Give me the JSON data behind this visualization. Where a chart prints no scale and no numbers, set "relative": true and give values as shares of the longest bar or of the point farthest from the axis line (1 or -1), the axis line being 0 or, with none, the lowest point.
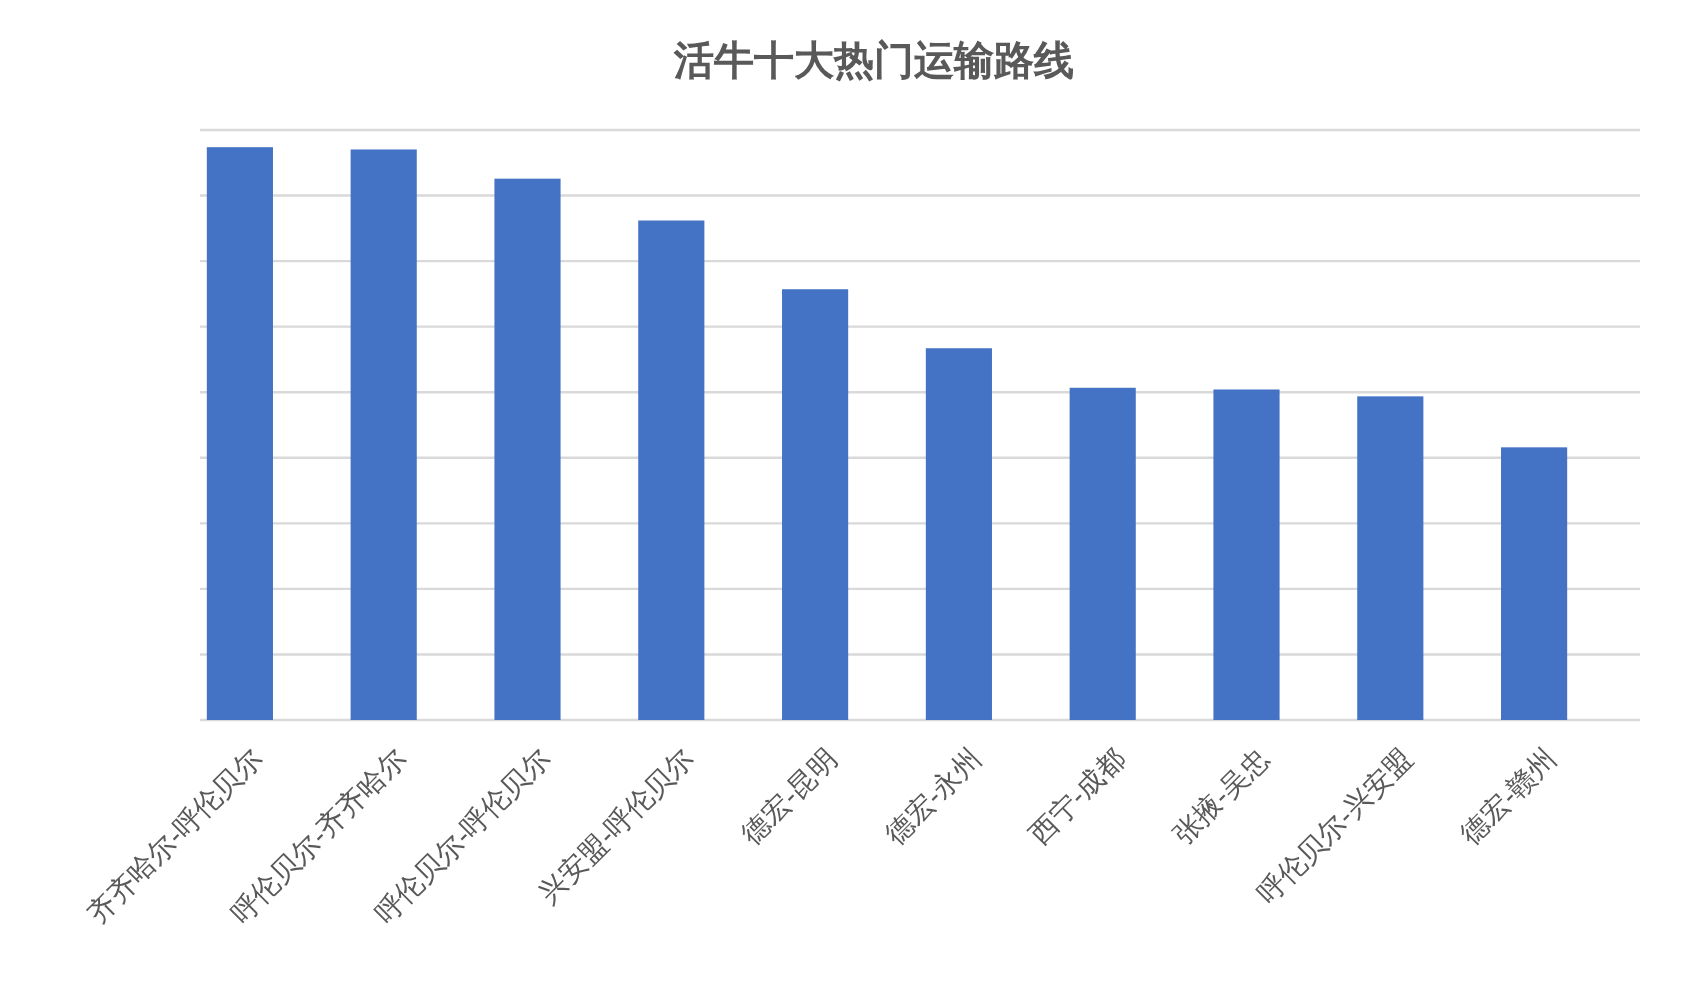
{
  "chart_data": {
    "type": "bar",
    "title": "活牛十大热门运输路线",
    "categories": [
      "齐齐哈尔-呼伦贝尔",
      "呼伦贝尔-齐齐哈尔",
      "呼伦贝尔-呼伦贝尔",
      "兴安盟-呼伦贝尔",
      "德宏-昆明",
      "德宏-永州",
      "西宁-成都",
      "张掖-吴忠",
      "呼伦贝尔-兴安盟",
      "德宏-赣州"
    ],
    "values": [
      1,
      0.996,
      0.945,
      0.872,
      0.752,
      0.649,
      0.58,
      0.577,
      0.565,
      0.476
    ],
    "color": "#4472c4",
    "relative": true,
    "grid": "y"
  }
}
